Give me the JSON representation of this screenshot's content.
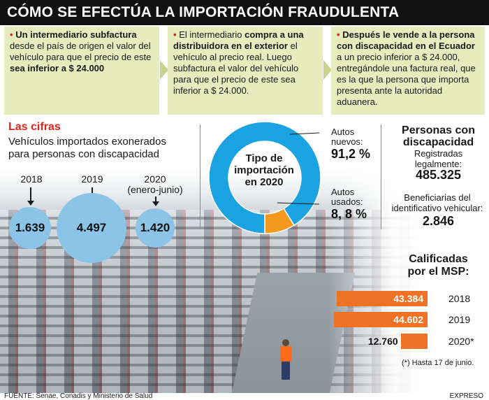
{
  "title": "CÓMO SE EFECTÚA LA IMPORTACIÓN FRAUDULENTA",
  "steps": [
    {
      "bullet": "•",
      "bold_1": "Un intermediario subfactura",
      "text_1": " desde el país de origen el valor del vehículo para que el precio de este ",
      "bold_2": "sea inferior a $ 24.000",
      "text_2": ""
    },
    {
      "bullet": "•",
      "text_0": "El intermediario ",
      "bold_1": "compra a una distribuidora en el exterior",
      "text_1": " el vehículo al precio real. Luego subfactura el valor del vehículo para que el precio de este sea inferior a $ 24.000."
    },
    {
      "bullet": "•",
      "bold_1": "Después le vende a la persona con discapacidad en el Ecuador",
      "text_1": " a un precio inferior a $ 24.000, entregándole una factura real, que es la que la persona que importa presenta ante la autoridad aduanera."
    }
  ],
  "cifras": {
    "title": "Las cifras",
    "subtitle": "Vehículos importados exonerados para personas con discapacidad"
  },
  "chart_data": [
    {
      "type": "bubble",
      "title": "Vehículos importados exonerados para personas con discapacidad",
      "categories": [
        "2018",
        "2019",
        "2020\n(enero-junio)"
      ],
      "category_labels": [
        "2018",
        "2019",
        "2020",
        "(enero-junio)"
      ],
      "values": [
        1639,
        4497,
        1420
      ],
      "value_labels": [
        "1.639",
        "4.497",
        "1.420"
      ],
      "color": "#8cc4e8"
    },
    {
      "type": "pie",
      "title": "Tipo de importación en 2020",
      "title_lines": [
        "Tipo de",
        "importación",
        "en 2020"
      ],
      "slices": [
        {
          "label_lines": [
            "Autos",
            "nuevos:"
          ],
          "value": 91.2,
          "value_label": "91,2 %",
          "color": "#1aa3e0"
        },
        {
          "label_lines": [
            "Autos",
            "usados:"
          ],
          "value": 8.8,
          "value_label": "8, 8 %",
          "color": "#f39a1e"
        }
      ]
    },
    {
      "type": "bar",
      "orientation": "horizontal",
      "title": "Calificadas por el MSP:",
      "title_lines": [
        "Calificadas",
        "por el MSP:"
      ],
      "categories": [
        "2018",
        "2019",
        "2020*"
      ],
      "values": [
        43384,
        44602,
        12760
      ],
      "value_labels": [
        "43.384",
        "44.602",
        "12.760"
      ],
      "color": "#f07224",
      "note": "(*) Hasta 17 de junio."
    }
  ],
  "right": {
    "personas_title": [
      "Personas con",
      "discapacidad"
    ],
    "registradas_label": [
      "Registradas",
      "legalmente:"
    ],
    "registradas_value": "485.325",
    "beneficiarias_label": [
      "Beneficiarias del",
      "identificativo vehicular:"
    ],
    "beneficiarias_value": "2.846"
  },
  "footer": {
    "source": "FUENTE: Senae, Conadis y Ministerio de Salud",
    "brand": "EXPRESO"
  }
}
